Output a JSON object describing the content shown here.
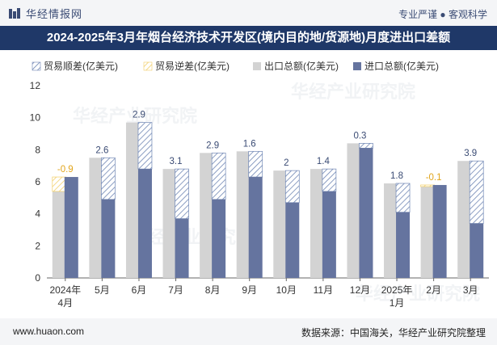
{
  "header": {
    "logo_text": "华经情报网",
    "slogan": "专业严谨 ● 客观科学",
    "title": "2024-2025年3月年烟台经济技术开发区(境内目的地/货源地)月度进出口差额"
  },
  "footer": {
    "site": "www.huaon.com",
    "source": "数据来源：中国海关，华经产业研究院整理"
  },
  "watermarks": [
    "华经产业研究院",
    "华经产业研究院",
    "华经产业研究院",
    "华经产业研究院"
  ],
  "colors": {
    "export_bar": "#d3d3d3",
    "import_bar": "#65749f",
    "surplus_hatch": "#6f86b4",
    "deficit_hatch": "#f2cf68",
    "label_surplus": "#3a4b74",
    "label_deficit": "#e1a51c",
    "title_bg": "#1f3868"
  },
  "chart_data": {
    "type": "bar",
    "categories": [
      "2024年4月",
      "5月",
      "6月",
      "7月",
      "8月",
      "9月",
      "10月",
      "11月",
      "12月",
      "2025年1月",
      "2月",
      "3月"
    ],
    "series": [
      {
        "name": "出口总额(亿美元)",
        "values": [
          5.4,
          7.5,
          9.7,
          6.8,
          7.8,
          7.9,
          6.7,
          6.8,
          8.4,
          5.9,
          5.7,
          7.3
        ]
      },
      {
        "name": "进口总额(亿美元)",
        "values": [
          6.3,
          4.9,
          6.8,
          3.7,
          4.9,
          6.3,
          4.7,
          5.4,
          8.1,
          4.1,
          5.8,
          3.4
        ]
      }
    ],
    "balance": [
      -0.9,
      2.6,
      2.9,
      3.1,
      2.9,
      1.6,
      2,
      1.4,
      0.3,
      1.8,
      -0.1,
      3.9
    ],
    "legend": [
      "贸易顺差(亿美元)",
      "贸易逆差(亿美元)",
      "出口总额(亿美元)",
      "进口总额(亿美元)"
    ],
    "legend_position": "top-left",
    "ylim": [
      0,
      12
    ],
    "yticks": [
      0,
      2,
      4,
      6,
      8,
      10,
      12
    ],
    "grid": false,
    "xlabel": "",
    "ylabel": ""
  }
}
